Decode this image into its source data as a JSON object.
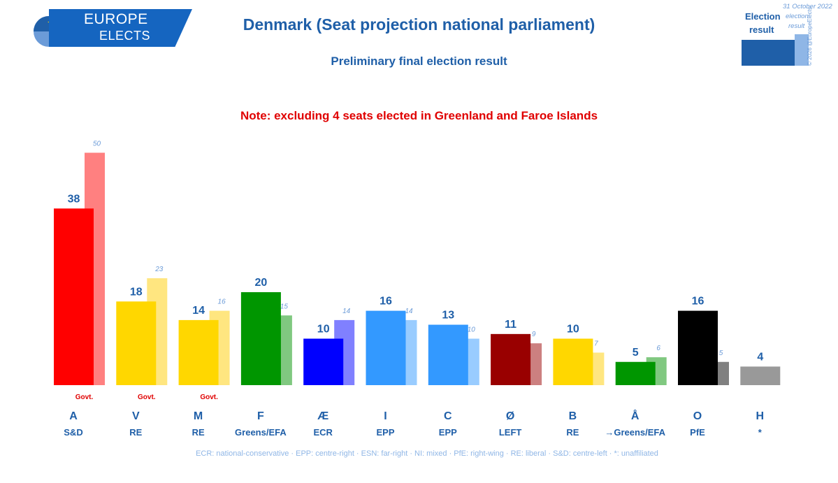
{
  "logo": {
    "line1": "EUROPE",
    "line2": "ELECTS"
  },
  "title": "Denmark (Seat projection national parliament)",
  "subtitle": "Preliminary final election result",
  "note": "Note: excluding 4 seats elected in Greenland and Faroe Islands",
  "legend": {
    "current_line1": "Election",
    "current_line2": "result",
    "date": "31 October 2022",
    "previous_line1": "election",
    "previous_line2": "result",
    "copyright": "© 2026 @EuropeElects"
  },
  "footnote": "ECR: national-conservative · EPP: centre-right · ESN: far-right · NI: mixed · PfE: right-wing · RE: liberal · S&D: centre-left · *: unaffiliated",
  "chart_data": {
    "type": "bar",
    "title": "Denmark (Seat projection national parliament)",
    "ylim": [
      0,
      50
    ],
    "series": [
      {
        "name": "Election result",
        "values": [
          38,
          18,
          14,
          20,
          10,
          16,
          13,
          11,
          10,
          5,
          16,
          4
        ]
      },
      {
        "name": "31 October 2022 election result",
        "values": [
          50,
          23,
          16,
          15,
          14,
          14,
          10,
          9,
          7,
          6,
          5,
          null
        ]
      }
    ],
    "categories": [
      "A",
      "V",
      "M",
      "F",
      "Æ",
      "I",
      "C",
      "Ø",
      "B",
      "Å",
      "O",
      "H"
    ],
    "groups": [
      "S&D",
      "RE",
      "RE",
      "Greens/EFA",
      "ECR",
      "EPP",
      "EPP",
      "LEFT",
      "RE",
      "→Greens/EFA",
      "PfE",
      "*"
    ],
    "govt": [
      true,
      true,
      true,
      false,
      false,
      false,
      false,
      false,
      false,
      false,
      false,
      false
    ],
    "govt_label": "Govt.",
    "colors": [
      "#ff0000",
      "#ffd700",
      "#ffd700",
      "#009600",
      "#0000ff",
      "#3399ff",
      "#3399ff",
      "#990000",
      "#ffd700",
      "#009600",
      "#000000",
      "#999999"
    ],
    "prev_colors": [
      "#ff8080",
      "#ffe680",
      "#ffe680",
      "#80c880",
      "#8080ff",
      "#99ccff",
      "#99ccff",
      "#cc8080",
      "#ffe680",
      "#80c880",
      "#808080",
      "#cccccc"
    ]
  }
}
